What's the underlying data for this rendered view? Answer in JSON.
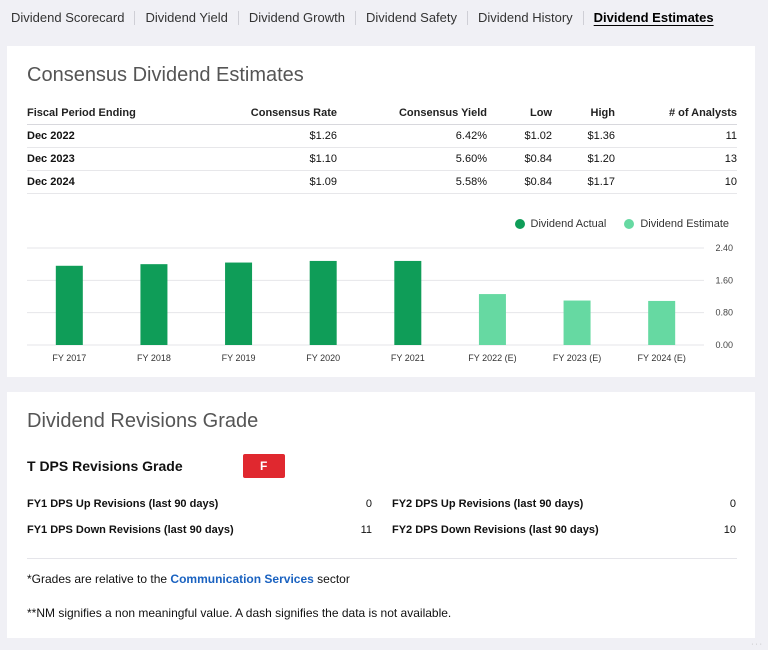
{
  "tabs": [
    {
      "label": "Dividend Scorecard",
      "active": false
    },
    {
      "label": "Dividend Yield",
      "active": false
    },
    {
      "label": "Dividend Growth",
      "active": false
    },
    {
      "label": "Dividend Safety",
      "active": false
    },
    {
      "label": "Dividend History",
      "active": false
    },
    {
      "label": "Dividend Estimates",
      "active": true
    }
  ],
  "estimates": {
    "title": "Consensus Dividend Estimates",
    "columns": [
      "Fiscal Period Ending",
      "Consensus Rate",
      "Consensus Yield",
      "Low",
      "High",
      "# of Analysts"
    ],
    "rows": [
      [
        "Dec 2022",
        "$1.26",
        "6.42%",
        "$1.02",
        "$1.36",
        "11"
      ],
      [
        "Dec 2023",
        "$1.10",
        "5.60%",
        "$0.84",
        "$1.20",
        "13"
      ],
      [
        "Dec 2024",
        "$1.09",
        "5.58%",
        "$0.84",
        "$1.17",
        "10"
      ]
    ]
  },
  "chart_data": {
    "type": "bar",
    "categories": [
      "FY 2017",
      "FY 2018",
      "FY 2019",
      "FY 2020",
      "FY 2021",
      "FY 2022 (E)",
      "FY 2023 (E)",
      "FY 2024 (E)"
    ],
    "series": [
      {
        "name": "Dividend Actual",
        "color": "#0f9d58",
        "values": [
          1.96,
          2.0,
          2.04,
          2.08,
          2.08,
          null,
          null,
          null
        ]
      },
      {
        "name": "Dividend Estimate",
        "color": "#66d9a2",
        "values": [
          null,
          null,
          null,
          null,
          null,
          1.26,
          1.1,
          1.09
        ]
      }
    ],
    "yticks": [
      "2.40",
      "1.60",
      "0.80",
      "0.00"
    ],
    "ylim": [
      0,
      2.4
    ],
    "grid": true,
    "legend": "top-right"
  },
  "revisions": {
    "title": "Dividend Revisions Grade",
    "grade_label": "T DPS Revisions Grade",
    "grade": "F",
    "items": [
      {
        "label": "FY1 DPS Up Revisions (last 90 days)",
        "value": "0"
      },
      {
        "label": "FY1 DPS Down Revisions (last 90 days)",
        "value": "11"
      },
      {
        "label": "FY2 DPS Up Revisions (last 90 days)",
        "value": "0"
      },
      {
        "label": "FY2 DPS Down Revisions (last 90 days)",
        "value": "10"
      }
    ],
    "note1_prefix": "*Grades are relative to the ",
    "note1_link": "Communication Services",
    "note1_suffix": " sector",
    "note2": "**NM signifies a non meaningful value. A dash signifies the data is not available."
  }
}
